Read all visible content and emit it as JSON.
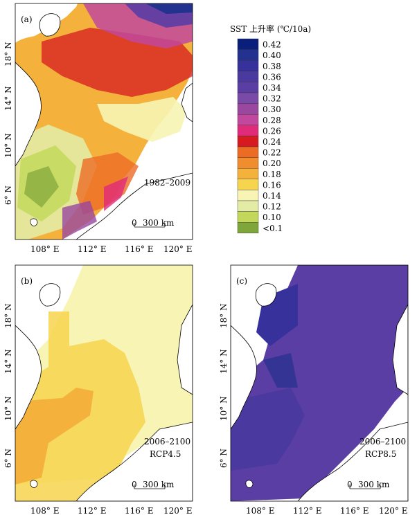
{
  "legend": {
    "title": "SST 上升率 (℃/10a)",
    "entries": [
      {
        "label": "0.42",
        "color": "#0a1f7c"
      },
      {
        "label": "0.40",
        "color": "#23318f"
      },
      {
        "label": "0.38",
        "color": "#37319b"
      },
      {
        "label": "0.36",
        "color": "#4a3a9f"
      },
      {
        "label": "0.34",
        "color": "#5a3ea4"
      },
      {
        "label": "0.32",
        "color": "#7a4aa8"
      },
      {
        "label": "0.30",
        "color": "#99479f"
      },
      {
        "label": "0.28",
        "color": "#c1489d"
      },
      {
        "label": "0.26",
        "color": "#e02a7a"
      },
      {
        "label": "0.24",
        "color": "#d71920"
      },
      {
        "label": "0.22",
        "color": "#ec6b25"
      },
      {
        "label": "0.20",
        "color": "#f08d2e"
      },
      {
        "label": "0.18",
        "color": "#f4b23c"
      },
      {
        "label": "0.16",
        "color": "#f6d44e"
      },
      {
        "label": "0.14",
        "color": "#f7f4b4"
      },
      {
        "label": "0.12",
        "color": "#e3eba4"
      },
      {
        "label": "0.10",
        "color": "#c3d85a"
      },
      {
        "label": "<0.1",
        "color": "#7fa63a"
      }
    ]
  },
  "axes": {
    "top_x_ticks": [
      "108° E",
      "112° E",
      "116° E",
      "120° E"
    ],
    "bottom_x_ticks": [
      "108° E",
      "112° E",
      "116° E",
      "120° E"
    ],
    "y_ticks_a": [
      "18° N",
      "14° N",
      "10° N",
      "6° N"
    ],
    "y_ticks_bc": [
      "18° N",
      "14° N",
      "10° N",
      "6° N"
    ]
  },
  "panels": {
    "a": {
      "letter": "(a)",
      "period": "1982–2009",
      "scale": "300 km",
      "zero": "0"
    },
    "b": {
      "letter": "(b)",
      "period": "2006–2100",
      "scenario": "RCP4.5",
      "scale": "300 km",
      "zero": "0"
    },
    "c": {
      "letter": "(c)",
      "period": "2006–2100",
      "scenario": "RCP8.5",
      "scale": "300 km",
      "zero": "0"
    }
  }
}
